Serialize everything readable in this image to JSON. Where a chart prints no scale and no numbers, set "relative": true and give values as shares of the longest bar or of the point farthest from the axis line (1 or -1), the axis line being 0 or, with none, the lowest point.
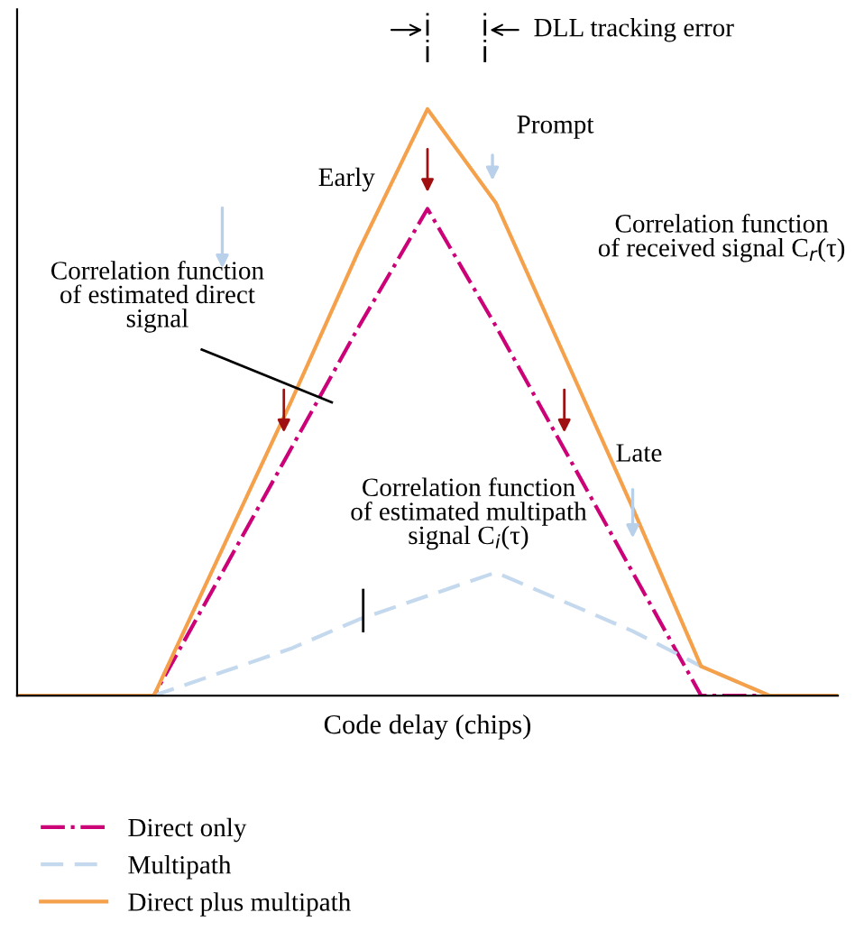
{
  "chart_data": {
    "type": "line",
    "relative": true,
    "xlabel": "Code delay (chips)",
    "categories": [
      null,
      null,
      null,
      null,
      null,
      null,
      null,
      null,
      null,
      null,
      null,
      null,
      null
    ],
    "series": [
      {
        "name": "Direct only",
        "color": "#cc0077",
        "line_style": "dashdot",
        "values": [
          0,
          0,
          0,
          0.21,
          0.42,
          0.63,
          0.83,
          0.63,
          0.42,
          0.21,
          0,
          0,
          0
        ]
      },
      {
        "name": "Multipath",
        "color": "#c5d9ee",
        "line_style": "dashed",
        "values": [
          0,
          0,
          0,
          0.04,
          0.08,
          0.13,
          0.17,
          0.21,
          0.16,
          0.11,
          0.05,
          0,
          0
        ]
      },
      {
        "name": "Direct plus multipath",
        "color": "#f5a04a",
        "line_style": "solid",
        "values": [
          0,
          0,
          0,
          0.25,
          0.5,
          0.76,
          1.0,
          0.84,
          0.58,
          0.32,
          0.05,
          0,
          0
        ]
      }
    ],
    "annotations": [
      "DLL tracking error",
      "Prompt",
      "Early",
      "Late",
      "Correlation function\nof received signal C$_{r}$(τ)",
      "Correlation function\nof estimated direct\nsignal",
      "Correlation function\nof estimated multipath\nsignal C$_{i}$(τ)"
    ],
    "legend": "bottom",
    "grid": false,
    "marker": "none"
  }
}
